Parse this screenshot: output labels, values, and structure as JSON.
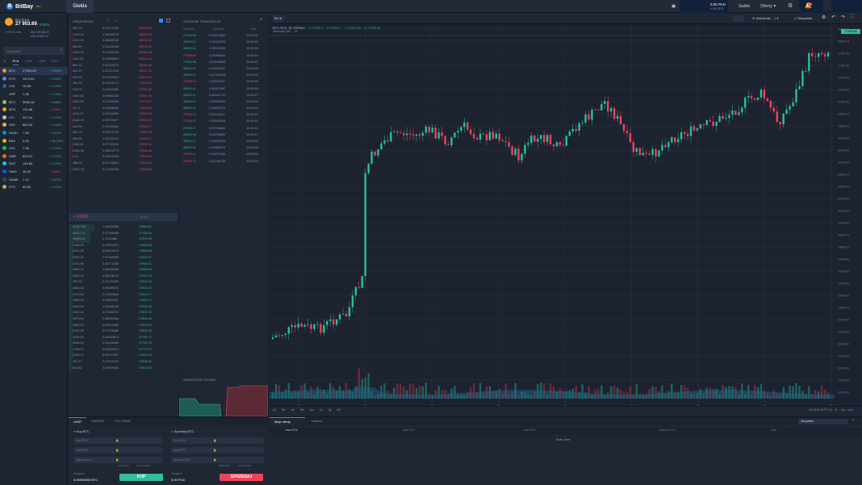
{
  "app": {
    "brand": "BitBay",
    "brand_badge": "PRO",
    "main_tab": "Giełda"
  },
  "topbar": {
    "balance_value": "0.00 PLN",
    "balance_sub": "0.000 BTC",
    "balances_label": "Saldo",
    "offers_label": "Oferty",
    "offers_arrow": "▾",
    "notifications_count": "4"
  },
  "ticker": {
    "pair": "BTC/PLN",
    "price": "27 953.69",
    "change": "+ 0.65%",
    "vol_value": "7 073.91",
    "high_label": "MAX",
    "high_value": "28 066.20",
    "low_label": "MIN",
    "low_value": "26 950.10",
    "vol_label": "VOL"
  },
  "market": {
    "search_placeholder": "Wyszukaj",
    "tabs": [
      "★",
      "PLN",
      "EUR",
      "USD",
      "BTC"
    ],
    "coins": [
      {
        "sym": "BTC",
        "price": "27953.69",
        "chg": "+ 0.65%",
        "up": true,
        "color": "#f7931a"
      },
      {
        "sym": "ETH",
        "price": "1474.50",
        "chg": "+ 0.26%",
        "up": true,
        "color": "#627eea"
      },
      {
        "sym": "LSK",
        "price": "15.88",
        "chg": "+ 0.47%",
        "up": true,
        "color": "#1a6896"
      },
      {
        "sym": "XRP",
        "price": "1.96",
        "chg": "+ 1.16%",
        "up": true,
        "color": "#23292f"
      },
      {
        "sym": "BCC",
        "price": "3568.18",
        "chg": "+ 0.86%",
        "up": true,
        "color": "#8dc351"
      },
      {
        "sym": "BTG",
        "price": "132.88",
        "chg": "- 1.10%",
        "up": false,
        "color": "#eba809"
      },
      {
        "sym": "LTC",
        "price": "307.44",
        "chg": "+ 0.13%",
        "up": true,
        "color": "#bfbbbb"
      },
      {
        "sym": "ZEC",
        "price": "884.33",
        "chg": "+ 0.18%",
        "up": true,
        "color": "#ecb244"
      },
      {
        "sym": "DASH",
        "price": "7.96",
        "chg": "+ 2.61%",
        "up": true,
        "color": "#008ce7"
      },
      {
        "sym": "BSV",
        "price": "0.06",
        "chg": "+ 81.23%",
        "up": true,
        "color": "#eab300"
      },
      {
        "sym": "XZC",
        "price": "7.38",
        "chg": "+ 0.16%",
        "up": true,
        "color": "#23b852"
      },
      {
        "sym": "XMR",
        "price": "825.91",
        "chg": "+ 0.37%",
        "up": true,
        "color": "#ff6600"
      },
      {
        "sym": "GNT",
        "price": "149.88",
        "chg": "+ 2.19%",
        "up": true,
        "color": "#00d6e3"
      },
      {
        "sym": "OMG",
        "price": "26.90",
        "chg": "- 0.83%",
        "up": false,
        "color": "#1a53f0"
      },
      {
        "sym": "GAME",
        "price": "1.12",
        "chg": "+ 2.67%",
        "up": true,
        "color": "#2d475b"
      },
      {
        "sym": "FTO",
        "price": "63.80",
        "chg": "+ 1.12%",
        "up": true,
        "color": "#c8a84b"
      }
    ]
  },
  "orderbook": {
    "title": "Orderbook",
    "sells": [
      [
        "699.76",
        "0.02177548",
        "28098.32"
      ],
      [
        "1700.94",
        "0.06049079",
        "28093.06"
      ],
      [
        "1914.92",
        "0.06830190",
        "28092.02"
      ],
      [
        "605.69",
        "0.02155446",
        "28075.39"
      ],
      [
        "1225.43",
        "0.04366436",
        "28068.28"
      ],
      [
        "1110.18",
        "0.03955694",
        "28064.22"
      ],
      [
        "881.31",
        "0.03139574",
        "28050.84"
      ],
      [
        "602.37",
        "0.02157342",
        "28011.78"
      ],
      [
        "399.69",
        "0.01420012",
        "28003.53"
      ],
      [
        "364.32",
        "0.01301174",
        "27999.02"
      ],
      [
        "515.02",
        "0.01841832",
        "27994.86"
      ],
      [
        "1944.80",
        "0.06950236",
        "27982.99"
      ],
      [
        "2084.96",
        "0.07456300",
        "27979.37"
      ],
      [
        "16.10",
        "0.00058354",
        "27953.96"
      ],
      [
        "1191.47",
        "0.04249990",
        "27963.04"
      ],
      [
        "2446.93",
        "0.08703577",
        "27961.87"
      ],
      [
        "443.94",
        "0.01591881",
        "27956.77"
      ],
      [
        "662.73",
        "0.02371247",
        "27956.25"
      ],
      [
        "608.31",
        "0.02193474",
        "27955.87"
      ],
      [
        "2166.81",
        "0.07742204",
        "27955.02"
      ],
      [
        "2295.36",
        "0.08202773",
        "27954.46"
      ],
      [
        "0.91",
        "0.00003303",
        "27953.90"
      ],
      [
        "488.99",
        "0.01745524",
        "27953.83"
      ],
      [
        "2000.78",
        "0.07150026",
        "27953.69"
      ]
    ],
    "spread_value": "+ 0.65%",
    "spread_extra": "14.14",
    "buys": [
      [
        "42357.53",
        "1.49539538",
        "27889.61"
      ],
      [
        "36012.13",
        "0.97998486",
        "27789.54"
      ],
      [
        "33883.91",
        "0.1210486",
        "27874.99"
      ],
      [
        "2168.99",
        "0.09932674",
        "27866.98"
      ],
      [
        "2423.36",
        "0.06303215",
        "27863.96"
      ],
      [
        "2500.41",
        "0.07466963",
        "27830.27"
      ],
      [
        "2131.85",
        "0.06771455",
        "27860.21"
      ],
      [
        "1863.71",
        "0.06499655",
        "27855.24"
      ],
      [
        "1440.33",
        "0.05026079",
        "27837.06"
      ],
      [
        "353.33",
        "0.01176435",
        "27819.28"
      ],
      [
        "1663.33",
        "0.05989291",
        "27816.34"
      ],
      [
        "2179.46",
        "0.07830634",
        "27811.27"
      ],
      [
        "1885.33",
        "0.06454411",
        "27860.71"
      ],
      [
        "1963.53",
        "0.05586190",
        "27808.23"
      ],
      [
        "1932.42",
        "0.07082574",
        "27807.33"
      ],
      [
        "1679.93",
        "0.06039254",
        "27805.80"
      ],
      [
        "1956.51",
        "0.06432559",
        "27803.33"
      ],
      [
        "2131.98",
        "0.07728066",
        "27802.95"
      ],
      [
        "1193.09",
        "0.04283574",
        "27780.77"
      ],
      [
        "1356.02",
        "0.04435369",
        "27790.78"
      ],
      [
        "1755.91",
        "0.06452374",
        "27775.79"
      ],
      [
        "2468.21",
        "0.08797537",
        "27822.48"
      ],
      [
        "421.37",
        "0.01511193",
        "27835.31"
      ],
      [
        "822.62",
        "0.02959083",
        "27813.23"
      ]
    ]
  },
  "trades": {
    "title": "Ostatnie transakcje",
    "col_price": "Kurs PLN",
    "col_amount": "Ilość BTC",
    "col_time": "Czas",
    "rows": [
      [
        "27953.69",
        "0.01617860",
        "10:09:51",
        true
      ],
      [
        "28000.11",
        "0.02024753",
        "10:09:49",
        true
      ],
      [
        "28000.11",
        "0.03537865",
        "10:09:46",
        true
      ],
      [
        "27936.59",
        "0.02068346",
        "10:09:43",
        false
      ],
      [
        "27953.96",
        "0.01635884",
        "10:09:40",
        true
      ],
      [
        "28000.11",
        "0.00606132",
        "10:09:36",
        true
      ],
      [
        "28000.11",
        "0.02702616",
        "10:09:33",
        true
      ],
      [
        "27956.03",
        "0.02547097",
        "10:09:30",
        false
      ],
      [
        "28000.11",
        "0.00937887",
        "10:09:28",
        true
      ],
      [
        "28000.11",
        "0.06481741",
        "10:09:27",
        true
      ],
      [
        "28000.11",
        "0.02089099",
        "10:09:24",
        true
      ],
      [
        "28000.11",
        "0.04645723",
        "10:09:22",
        true
      ],
      [
        "27998.14",
        "0.02024027",
        "10:09:20",
        false
      ],
      [
        "27998.11",
        "0.02548216",
        "10:09:16",
        false
      ],
      [
        "27996.17",
        "0.03766861",
        "10:09:13",
        true
      ],
      [
        "28000.99",
        "0.01225863",
        "10:09:11",
        true
      ],
      [
        "28000.11",
        "0.00505424",
        "10:09:09",
        true
      ],
      [
        "28000.11",
        "0.00889479",
        "10:09:06",
        true
      ],
      [
        "27998.11",
        "0.03217184",
        "10:09:02",
        false
      ],
      [
        "27999.13",
        "0.01798755",
        "10:09:00",
        false
      ]
    ]
  },
  "depth": {
    "title": "Głębokość rynku"
  },
  "chart": {
    "interval": "5m",
    "symbol": "BTC-PLN, 30, BITBAY",
    "ohlc_o": "O 27953.7",
    "ohlc_h": "H 27953.7",
    "ohlc_l": "L 27953.69",
    "ohlc_c": "C 27953.69",
    "vol_label": "Wolumen (20)",
    "vol_value": "29",
    "indicators_label": "Wskaźniki",
    "settings_label": "Wszystkie",
    "price_tag": "27953.69",
    "time_readout": "10:09:51 (UTC+2)",
    "auto_label": "auto",
    "pct_label": "%",
    "log_label": "log",
    "x_labels": [
      "12",
      "13",
      "14",
      "15",
      "16",
      "17",
      "18",
      "19",
      "20"
    ],
    "y_labels": [
      "28200.00",
      "28000.00",
      "27800.00",
      "27600.00",
      "27400.00",
      "27200.00",
      "27000.00",
      "26800.00",
      "26600.00",
      "26400.00",
      "26200.00",
      "26000.00",
      "25800.00",
      "25600.00",
      "25400.00",
      "25200.00",
      "25000.00",
      "24800.00",
      "24600.00",
      "24400.00",
      "24200.00",
      "24000.00",
      "23800.00",
      "23600.00",
      "23400.00",
      "23200.00",
      "23000.00",
      "22800.00",
      "22600.00",
      "22400.00",
      "22200.00"
    ],
    "ranges": [
      "1d",
      "5d",
      "1m",
      "3m",
      "6m",
      "1y",
      "5y",
      "All"
    ]
  },
  "trade_form": {
    "tabs": [
      "LIMIT",
      "MARKET",
      "TILL DEAD"
    ],
    "buy_title": "Kup BTC",
    "sell_title": "Sprzedaj BTC",
    "price_label": "Kurs PLN",
    "amount_label": "Ilość BTC",
    "total_label": "Wartość PLN",
    "fee_label": "Dostępne",
    "buy_available": "0.00000000 BTC",
    "sell_available": "0.00 PLN",
    "buy_btn": "KUP",
    "sell_btn": "SPRZEDAJ",
    "min_note": "MINIMUM",
    "max_note": "MAKSIMUM"
  },
  "offers": {
    "tabs": [
      "Moje oferty",
      "Historia"
    ],
    "filter": "Wszystkie",
    "cols": [
      "Kurs PLN",
      "Ilość BTC",
      "Wartość PLN",
      "Data"
    ],
    "col_pair": "Kurs PLN",
    "empty": "Brak ofert"
  }
}
